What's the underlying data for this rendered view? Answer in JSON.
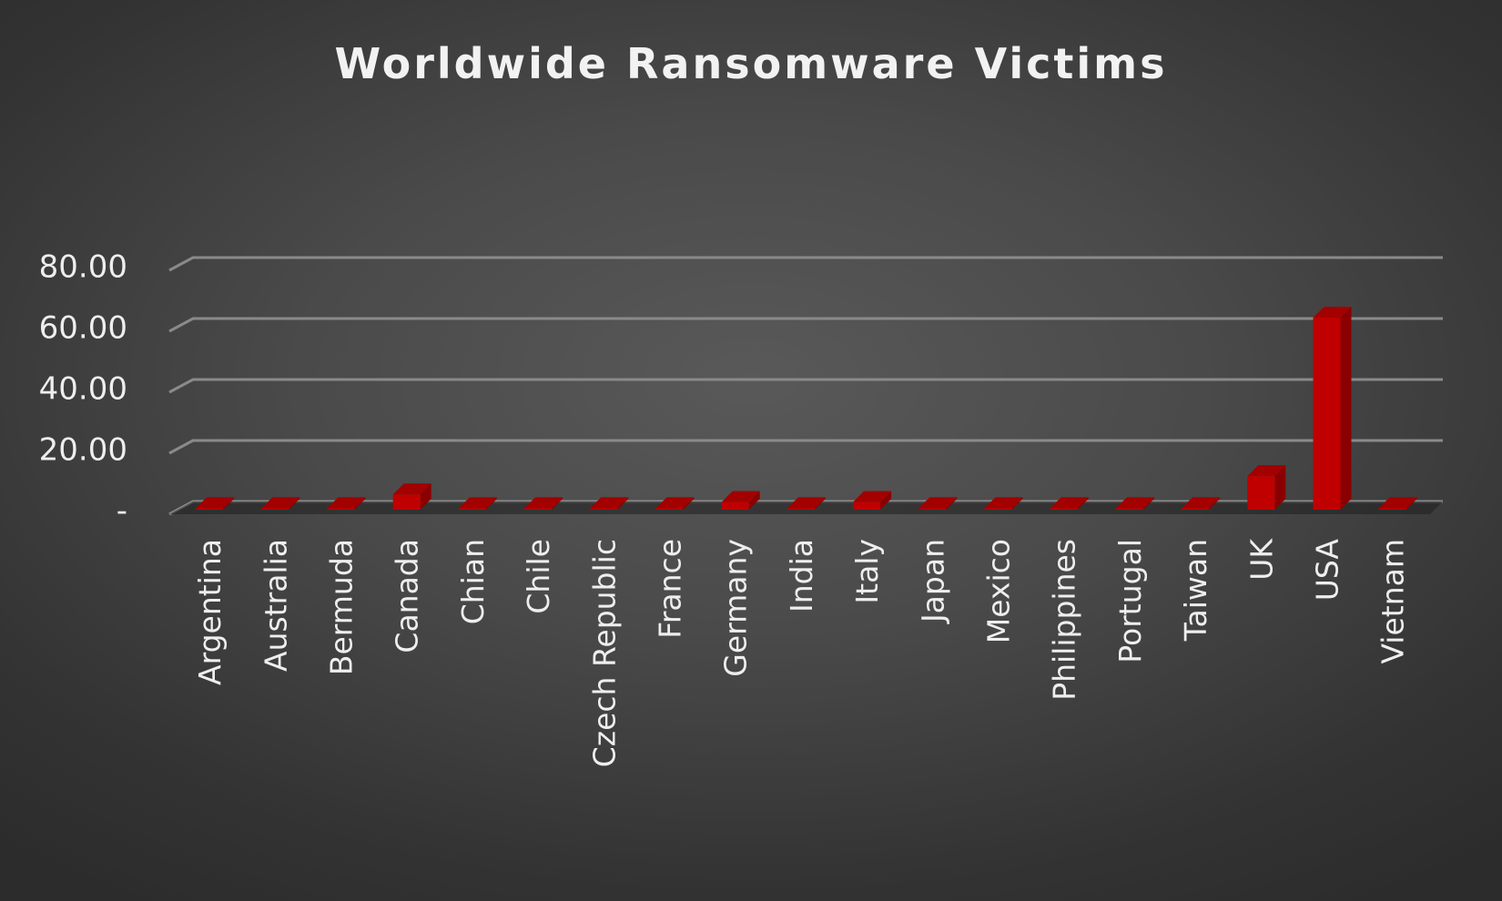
{
  "chart_data": {
    "type": "bar",
    "title": "Worldwide Ransomware Victims",
    "xlabel": "",
    "ylabel": "",
    "ylim": [
      0,
      80
    ],
    "yticks": [
      0,
      20,
      40,
      60,
      80
    ],
    "ytick_labels": [
      "-",
      "20.00",
      "40.00",
      "60.00",
      "80.00"
    ],
    "grid": true,
    "legend": "none",
    "style": "3d-column",
    "bar_color": "#c00000",
    "categories": [
      "Argentina",
      "Australia",
      "Bermuda",
      "Canada",
      "Chian",
      "Chile",
      "Czech Republic",
      "France",
      "Germany",
      "India",
      "Italy",
      "Japan",
      "Mexico",
      "Philippines",
      "Portugal",
      "Taiwan",
      "UK",
      "USA",
      "Vietnam"
    ],
    "values": [
      0.5,
      0.5,
      0.5,
      5,
      0.5,
      0.5,
      0.5,
      0.5,
      2.5,
      0.5,
      2.5,
      0.5,
      0.5,
      0.5,
      0.5,
      0.5,
      11,
      63,
      0.5
    ]
  }
}
